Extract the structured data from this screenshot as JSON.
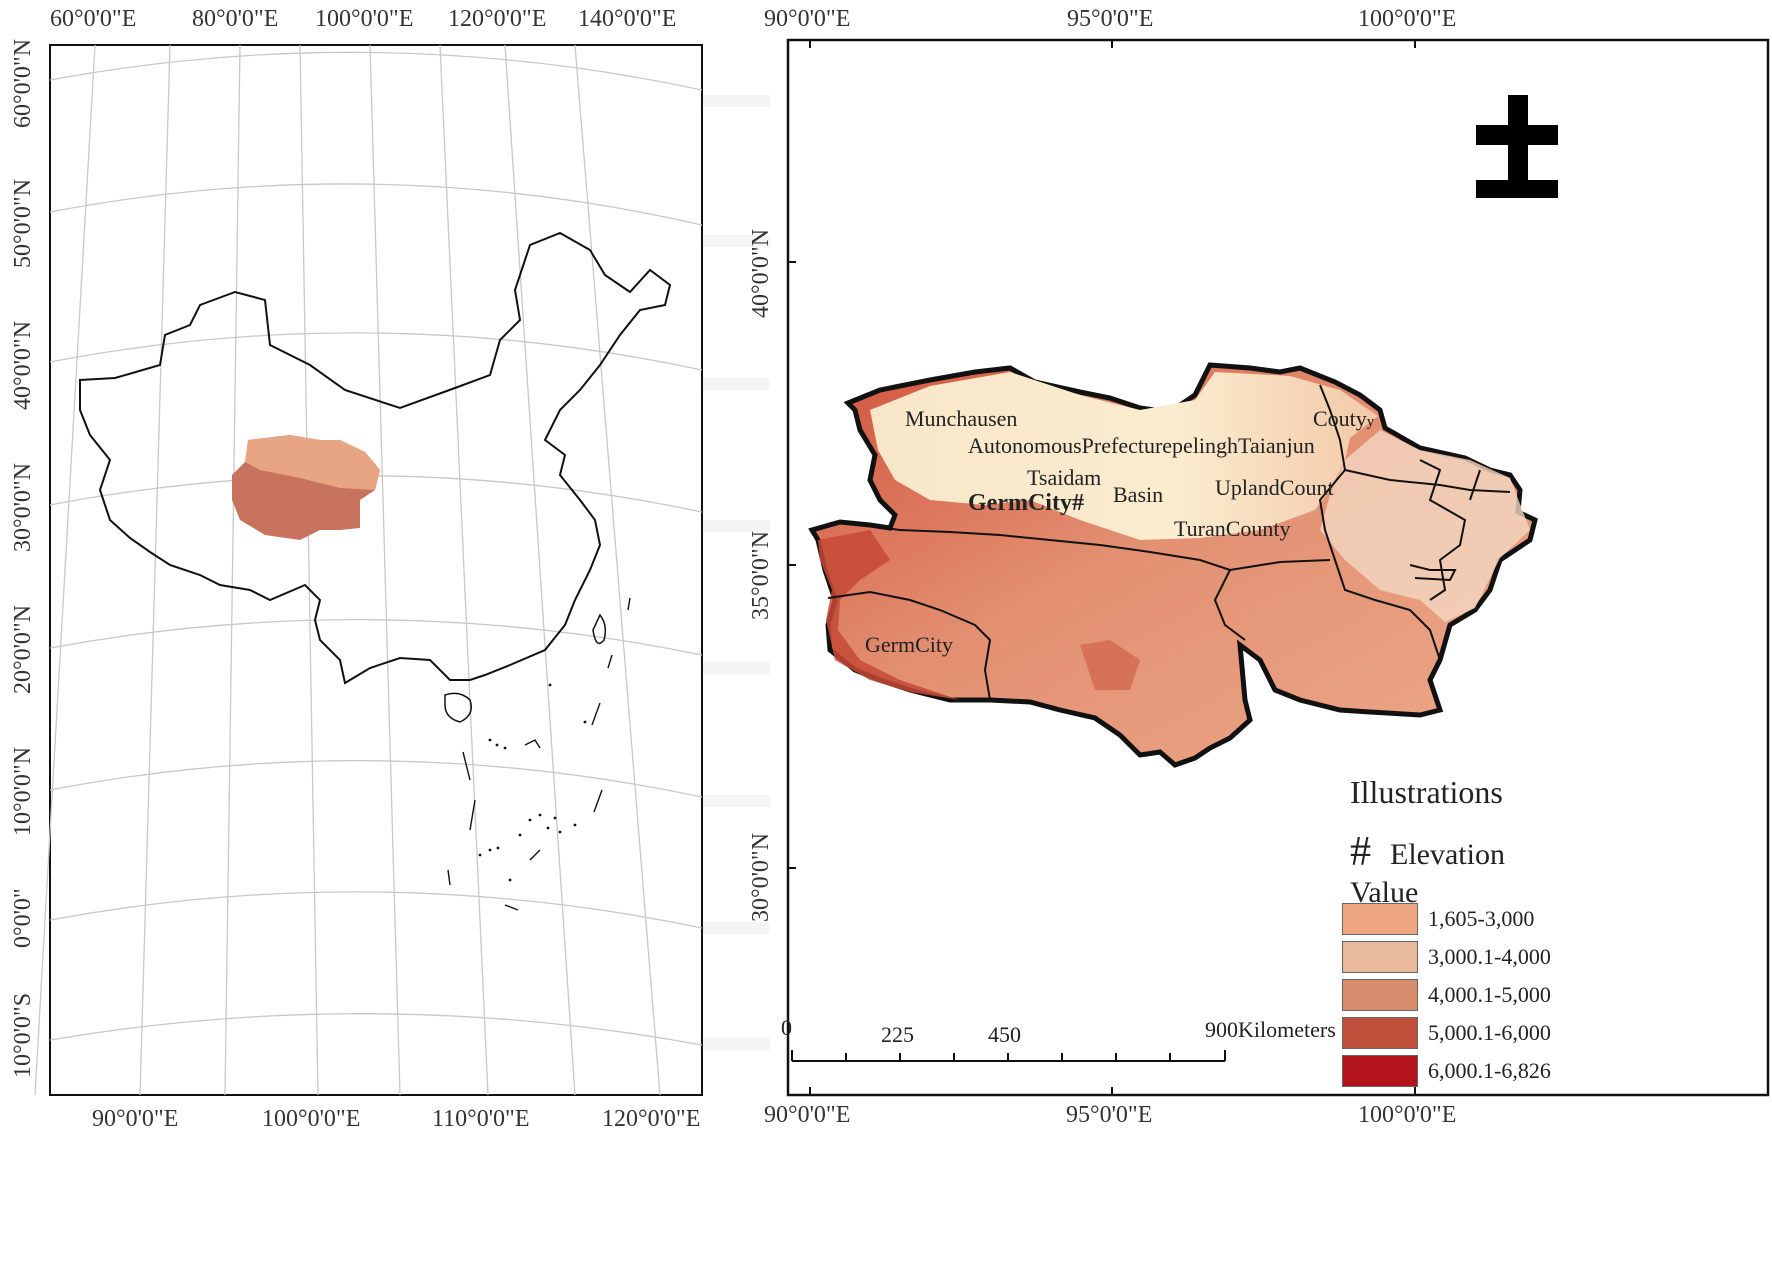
{
  "left_map": {
    "top_lon_labels": [
      "60°0'0\"E",
      "80°0'0\"E",
      "100°0'0\"E",
      "120°0'0\"E",
      "140°0'0\"E"
    ],
    "bottom_lon_labels": [
      "90°0'0\"E",
      "100°0'0\"E",
      "110°0'0\"E",
      "120°0'0\"E"
    ],
    "lat_labels": [
      "60°0'0\"N",
      "50°0'0\"N",
      "40°0'0\"N",
      "30°0'0\"N",
      "20°0'0\"N",
      "10°0'0\"N",
      "0°0'0\"",
      "10°0'0\"S"
    ]
  },
  "right_map": {
    "top_lon_labels": [
      "90°0'0\"E",
      "95°0'0\"E",
      "100°0'0\"E"
    ],
    "bottom_lon_labels": [
      "90°0'0\"E",
      "95°0'0\"E",
      "100°0'0\"E"
    ],
    "lat_labels": [
      "40°0'0\"N",
      "35°0'0\"N",
      "30°0'0\"N"
    ],
    "north_arrow_symbol": "±",
    "place_labels": {
      "munchausen": "Munchausen",
      "autonomous": "AutonomousPrefecturepelinghTaianjun",
      "couty": "Couty",
      "couty_sub": "y",
      "tsaidam": "Tsaidam",
      "basin": "Basin",
      "upland": "UplandCount",
      "germcity_hash": "GermCity#",
      "turan": "TuranCounty",
      "germcity": "GermCity"
    },
    "scale_bar": {
      "labels": [
        "0",
        "225",
        "450",
        "900Kilometers"
      ]
    },
    "legend": {
      "title": "Illustrations",
      "symbol": "#",
      "elevation": "Elevation",
      "value": "Value",
      "classes": [
        {
          "label": "1,605-3,000",
          "color": "#eea581"
        },
        {
          "label": "3,000.1-4,000",
          "color": "#e9b99c"
        },
        {
          "label": "4,000.1-5,000",
          "color": "#d78c6e"
        },
        {
          "label": "5,000.1-6,000",
          "color": "#c04f3c"
        },
        {
          "label": "6,000.1-6,826",
          "color": "#b3141b"
        }
      ]
    }
  }
}
